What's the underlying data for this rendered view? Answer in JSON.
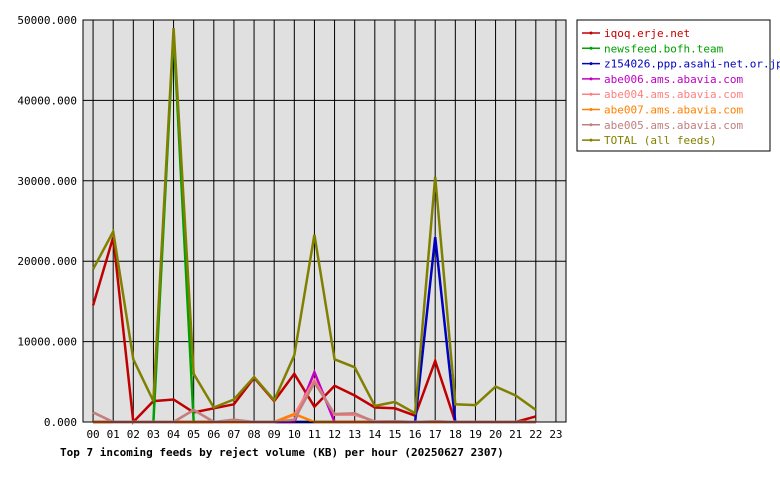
{
  "chart_data": {
    "type": "line",
    "title": "Top 7 incoming feeds by reject volume (KB) per hour (20250627 2307)",
    "xlabel": "",
    "ylabel": "",
    "ylim": [
      0,
      50000
    ],
    "y_ticks": [
      "0.000",
      "10000.000",
      "20000.000",
      "30000.000",
      "40000.000",
      "50000.000"
    ],
    "categories": [
      "00",
      "01",
      "02",
      "03",
      "04",
      "05",
      "06",
      "07",
      "08",
      "09",
      "10",
      "11",
      "12",
      "13",
      "14",
      "15",
      "16",
      "17",
      "18",
      "19",
      "20",
      "21",
      "22",
      "23"
    ],
    "grid": true,
    "legend_position": "right",
    "series": [
      {
        "name": "iqoq.erje.net",
        "color": "#c00000",
        "values": [
          14500,
          23000,
          0,
          2600,
          2800,
          1200,
          1700,
          2200,
          5500,
          2600,
          6000,
          1900,
          4500,
          3300,
          1800,
          1700,
          800,
          7600,
          0,
          0,
          0,
          0,
          700,
          null
        ]
      },
      {
        "name": "newsfeed.bofh.team",
        "color": "#00a000",
        "values": [
          0,
          0,
          0,
          0,
          48500,
          0,
          0,
          0,
          0,
          0,
          0,
          0,
          0,
          0,
          0,
          0,
          0,
          0,
          0,
          0,
          0,
          0,
          0,
          null
        ]
      },
      {
        "name": "z154026.ppp.asahi-net.or.jp",
        "color": "#0000c0",
        "values": [
          0,
          0,
          0,
          0,
          0,
          0,
          0,
          0,
          0,
          0,
          0,
          0,
          0,
          0,
          0,
          0,
          0,
          23000,
          0,
          0,
          0,
          0,
          0,
          null
        ]
      },
      {
        "name": "abe006.ams.abavia.com",
        "color": "#c000c0",
        "values": [
          0,
          0,
          0,
          0,
          0,
          0,
          0,
          0,
          0,
          0,
          0,
          6200,
          0,
          0,
          0,
          0,
          0,
          0,
          0,
          0,
          0,
          0,
          0,
          null
        ]
      },
      {
        "name": "abe004.ams.abavia.com",
        "color": "#ff8080",
        "values": [
          1200,
          0,
          0,
          0,
          0,
          1500,
          0,
          0,
          0,
          0,
          900,
          5200,
          900,
          900,
          100,
          100,
          0,
          100,
          0,
          0,
          0,
          0,
          0,
          null
        ]
      },
      {
        "name": "abe007.ams.abavia.com",
        "color": "#ff8000",
        "values": [
          0,
          0,
          0,
          0,
          0,
          0,
          0,
          0,
          0,
          0,
          1000,
          0,
          0,
          0,
          0,
          0,
          0,
          0,
          0,
          0,
          0,
          0,
          0,
          null
        ]
      },
      {
        "name": "abe005.ams.abavia.com",
        "color": "#c08080",
        "values": [
          1200,
          0,
          0,
          0,
          0,
          1500,
          0,
          300,
          0,
          0,
          300,
          4900,
          1000,
          1100,
          0,
          100,
          0,
          100,
          0,
          0,
          0,
          0,
          0,
          null
        ]
      },
      {
        "name": "TOTAL (all feeds)",
        "color": "#808000",
        "values": [
          19000,
          23700,
          7800,
          2600,
          49000,
          6000,
          1800,
          2800,
          5600,
          2700,
          8300,
          23300,
          7800,
          6800,
          2000,
          2500,
          1100,
          30500,
          2200,
          2100,
          4400,
          3300,
          1500,
          null
        ]
      }
    ]
  }
}
